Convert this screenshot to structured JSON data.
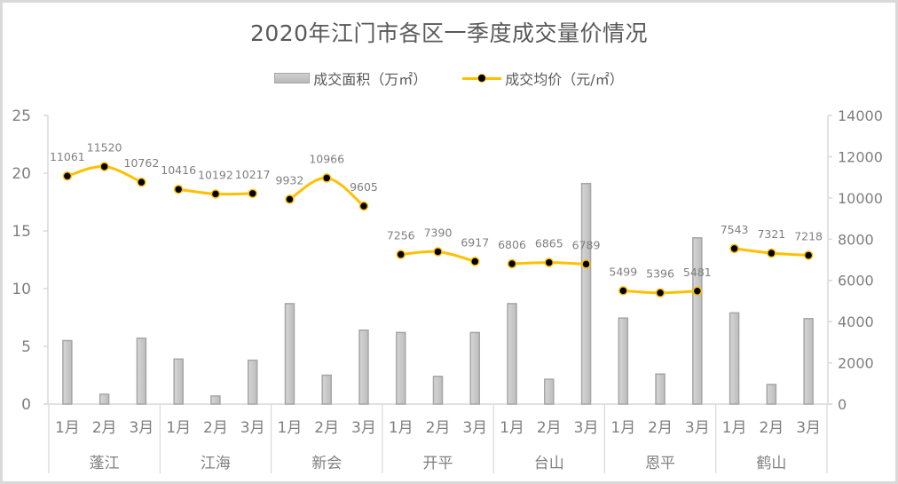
{
  "title": "2020年江门市各区一季度成交量价情况",
  "legend": {
    "bar_label": "成交面积（万㎡）",
    "line_label": "成交均价（元/㎡）"
  },
  "colors": {
    "bar_fill": "#c8c8c8",
    "bar_stroke": "#a6a6a6",
    "line": "#ffc000",
    "marker": "#000000",
    "axis": "#d9d9d9",
    "text": "#7f7f7f"
  },
  "chart_data": {
    "type": "bar+line",
    "title": "2020年江门市各区一季度成交量价情况",
    "groups": [
      "蓬江",
      "江海",
      "新会",
      "开平",
      "台山",
      "恩平",
      "鹤山"
    ],
    "months": [
      "1月",
      "2月",
      "3月"
    ],
    "categories": [
      "蓬江-1月",
      "蓬江-2月",
      "蓬江-3月",
      "江海-1月",
      "江海-2月",
      "江海-3月",
      "新会-1月",
      "新会-2月",
      "新会-3月",
      "开平-1月",
      "开平-2月",
      "开平-3月",
      "台山-1月",
      "台山-2月",
      "台山-3月",
      "恩平-1月",
      "恩平-2月",
      "恩平-3月",
      "鹤山-1月",
      "鹤山-2月",
      "鹤山-3月"
    ],
    "series": [
      {
        "name": "成交面积（万㎡）",
        "type": "bar",
        "axis": "left",
        "values": [
          5.5,
          0.85,
          5.7,
          3.9,
          0.7,
          3.8,
          8.7,
          2.5,
          6.4,
          6.2,
          2.4,
          6.2,
          8.7,
          2.15,
          19.1,
          7.45,
          2.6,
          14.4,
          7.9,
          1.7,
          7.4
        ]
      },
      {
        "name": "成交均价（元/㎡）",
        "type": "line",
        "axis": "right",
        "values": [
          11061,
          11520,
          10762,
          10416,
          10192,
          10217,
          9932,
          10966,
          9605,
          7256,
          7390,
          6917,
          6806,
          6865,
          6789,
          5499,
          5396,
          5481,
          7543,
          7321,
          7218
        ],
        "labels": [
          "11061",
          "11520",
          "10762",
          "10416",
          "10192",
          "10217",
          "9932",
          "10966",
          "9605",
          "7256",
          "7390",
          "6917",
          "6806",
          "6865",
          "6789",
          "5499",
          "5396",
          "5481",
          "7543",
          "7321",
          "7218"
        ]
      }
    ],
    "left_axis": {
      "ticks": [
        "0",
        "5",
        "10",
        "15",
        "20",
        "25"
      ],
      "range": [
        0,
        25
      ]
    },
    "right_axis": {
      "ticks": [
        "0",
        "2000",
        "4000",
        "6000",
        "8000",
        "10000",
        "12000",
        "14000"
      ],
      "range": [
        0,
        14000
      ]
    },
    "xlabel": "",
    "ylabel": "",
    "grid": false,
    "legend_position": "top"
  }
}
